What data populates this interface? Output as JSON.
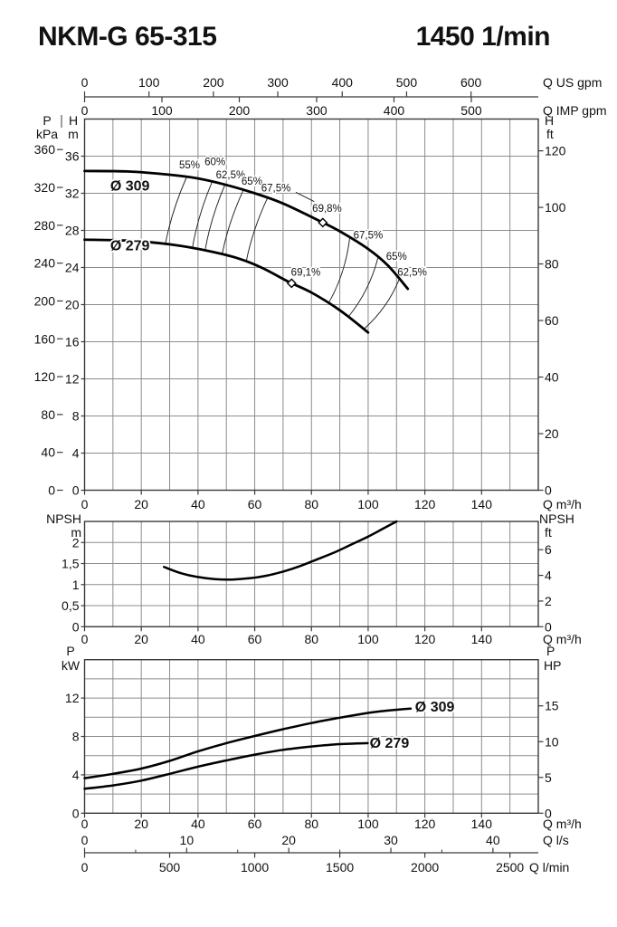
{
  "page": {
    "title": "NKM-G 65-315",
    "speed": "1450 1/min"
  },
  "colors": {
    "background": "#ffffff",
    "grid": "#8c8c8c",
    "frame": "#3a3a3a",
    "curve": "#000000",
    "efficiency_line": "#222222",
    "text": "#111111"
  },
  "chart_data": [
    {
      "id": "hq",
      "type": "line",
      "title": "Head vs flow with efficiency contours",
      "x": {
        "unit": "Q m³/h",
        "range": [
          0,
          160
        ],
        "grid_step": 10,
        "ticks": [
          0,
          20,
          40,
          60,
          80,
          100,
          120,
          140
        ]
      },
      "y": {
        "unit_lines": [
          "H",
          "m"
        ],
        "range": [
          0,
          40
        ],
        "grid_step": 4,
        "ticks": [
          0,
          4,
          8,
          12,
          16,
          20,
          24,
          28,
          32,
          36
        ]
      },
      "axis_kpa": {
        "unit_lines": [
          "P",
          "kPa"
        ],
        "ticks": [
          0,
          40,
          80,
          120,
          160,
          200,
          240,
          280,
          320,
          360
        ],
        "m_per_unit": 0.101972
      },
      "axis_ft": {
        "unit_lines": [
          "H",
          "ft"
        ],
        "ticks": [
          0,
          20,
          40,
          60,
          80,
          100,
          120
        ],
        "m_per_unit": 0.3048
      },
      "axis_usgpm": {
        "unit": "Q US gpm",
        "ticks": [
          0,
          100,
          200,
          300,
          400,
          500,
          600
        ],
        "m3h_per_unit": 0.22712
      },
      "axis_impgpm": {
        "unit": "Q IMP gpm",
        "ticks": [
          0,
          100,
          200,
          300,
          400,
          500
        ],
        "m3h_per_unit": 0.27277
      },
      "series": [
        {
          "name": "Ø 309",
          "label_at": [
            16,
            32.8
          ],
          "points": [
            [
              0,
              34.4
            ],
            [
              15,
              34.35
            ],
            [
              30,
              34.0
            ],
            [
              40,
              33.6
            ],
            [
              50,
              32.9
            ],
            [
              60,
              32.0
            ],
            [
              70,
              30.9
            ],
            [
              83,
              29.0
            ],
            [
              90,
              27.9
            ],
            [
              100,
              26.0
            ],
            [
              107,
              24.2
            ],
            [
              114,
              21.7
            ]
          ]
        },
        {
          "name": "Ø 279",
          "label_at": [
            16,
            26.35
          ],
          "points": [
            [
              0,
              27.0
            ],
            [
              15,
              26.9
            ],
            [
              30,
              26.5
            ],
            [
              45,
              25.7
            ],
            [
              55,
              24.9
            ],
            [
              63,
              23.9
            ],
            [
              72,
              22.45
            ],
            [
              80,
              21.3
            ],
            [
              90,
              19.4
            ],
            [
              100,
              17.0
            ]
          ]
        }
      ],
      "best_efficiency_points": [
        {
          "label": "69,8%",
          "q": 84,
          "h": 28.9,
          "label_at": [
            85.5,
            30.3
          ]
        },
        {
          "label": "69,1%",
          "q": 73,
          "h": 22.3,
          "label_at": [
            78,
            23.4
          ]
        }
      ],
      "efficiency_lines": [
        {
          "label": "55%",
          "label_at": [
            37,
            35.0
          ],
          "upper_x": 36,
          "lower_x": 28.5,
          "side": "left"
        },
        {
          "label": "60%",
          "label_at": [
            46,
            35.3
          ],
          "upper_x": 45,
          "lower_x": 38,
          "side": "left"
        },
        {
          "label": "62,5%",
          "label_at": [
            51.5,
            33.9
          ],
          "upper_x": 49.5,
          "lower_x": 42.5,
          "side": "left"
        },
        {
          "label": "65%",
          "label_at": [
            59,
            33.2
          ],
          "upper_x": 56,
          "lower_x": 48.5,
          "side": "left"
        },
        {
          "label": "67,5%",
          "label_at": [
            67.5,
            32.5
          ],
          "upper_x": 64.5,
          "lower_x": 57,
          "side": "left",
          "leader": [
            [
              74.5,
              32.1
            ],
            [
              81,
              31.1
            ]
          ]
        },
        {
          "label": "67,5%",
          "label_at": [
            100,
            27.4
          ],
          "upper_x": 93.5,
          "lower_x": 86,
          "side": "right"
        },
        {
          "label": "65%",
          "label_at": [
            110,
            25.1
          ],
          "upper_x": 103.5,
          "lower_x": 93,
          "side": "right"
        },
        {
          "label": "62,5%",
          "label_at": [
            115.5,
            23.4
          ],
          "upper_x": 111,
          "lower_x": 98.5,
          "side": "right"
        }
      ]
    },
    {
      "id": "npsh",
      "type": "line",
      "title": "NPSH vs flow",
      "x": {
        "unit": "Q m³/h",
        "range": [
          0,
          160
        ],
        "grid_step": 10,
        "ticks": [
          0,
          20,
          40,
          60,
          80,
          100,
          120,
          140
        ]
      },
      "y": {
        "unit_lines": [
          "NPSH",
          "m"
        ],
        "range": [
          0,
          2.5
        ],
        "grid_step": 0.5,
        "ticks": [
          {
            "v": 0,
            "t": "0"
          },
          {
            "v": 0.5,
            "t": "0,5"
          },
          {
            "v": 1,
            "t": "1"
          },
          {
            "v": 1.5,
            "t": "1,5"
          },
          {
            "v": 2,
            "t": "2"
          }
        ]
      },
      "axis_ft": {
        "unit_lines": [
          "NPSH",
          "ft"
        ],
        "ticks": [
          0,
          2,
          4,
          6
        ],
        "m_per_unit": 0.3048
      },
      "points": [
        [
          28,
          1.42
        ],
        [
          34,
          1.27
        ],
        [
          40,
          1.18
        ],
        [
          46,
          1.13
        ],
        [
          52,
          1.12
        ],
        [
          58,
          1.15
        ],
        [
          64,
          1.21
        ],
        [
          70,
          1.31
        ],
        [
          76,
          1.44
        ],
        [
          82,
          1.6
        ],
        [
          88,
          1.76
        ],
        [
          94,
          1.95
        ],
        [
          100,
          2.14
        ],
        [
          105,
          2.32
        ],
        [
          110,
          2.5
        ]
      ]
    },
    {
      "id": "power",
      "type": "line",
      "title": "Power vs flow",
      "x": {
        "unit": "Q m³/h",
        "range": [
          0,
          160
        ],
        "grid_step": 10,
        "ticks": [
          0,
          20,
          40,
          60,
          80,
          100,
          120,
          140
        ]
      },
      "y": {
        "unit_lines": [
          "P",
          "kW"
        ],
        "range": [
          0,
          16
        ],
        "grid_step": 2,
        "ticks": [
          0,
          4,
          8,
          12
        ]
      },
      "axis_hp": {
        "unit_lines": [
          "P",
          "HP"
        ],
        "ticks": [
          0,
          5,
          10,
          15
        ],
        "kw_per_unit": 0.7457
      },
      "axis_ls": {
        "unit": "Q l/s",
        "ticks": [
          0,
          10,
          20,
          30,
          40
        ],
        "minor_step": 5,
        "m3h_per_unit": 3.6
      },
      "axis_lmin": {
        "unit": "Q l/min",
        "ticks": [
          0,
          500,
          1000,
          1500,
          2000,
          2500
        ],
        "m3h_per_unit": 0.06
      },
      "series": [
        {
          "name": "Ø 309",
          "label_at": [
            123.5,
            11.05
          ],
          "points": [
            [
              0,
              3.65
            ],
            [
              10,
              4.1
            ],
            [
              20,
              4.65
            ],
            [
              30,
              5.45
            ],
            [
              40,
              6.45
            ],
            [
              50,
              7.3
            ],
            [
              60,
              8.05
            ],
            [
              70,
              8.75
            ],
            [
              80,
              9.4
            ],
            [
              90,
              9.95
            ],
            [
              100,
              10.45
            ],
            [
              107,
              10.7
            ],
            [
              115,
              10.9
            ]
          ]
        },
        {
          "name": "Ø 279",
          "label_at": [
            107.5,
            7.28
          ],
          "points": [
            [
              0,
              2.55
            ],
            [
              10,
              2.9
            ],
            [
              20,
              3.4
            ],
            [
              30,
              4.1
            ],
            [
              40,
              4.85
            ],
            [
              50,
              5.5
            ],
            [
              60,
              6.1
            ],
            [
              70,
              6.6
            ],
            [
              80,
              6.95
            ],
            [
              90,
              7.2
            ],
            [
              100,
              7.3
            ]
          ]
        }
      ]
    }
  ]
}
